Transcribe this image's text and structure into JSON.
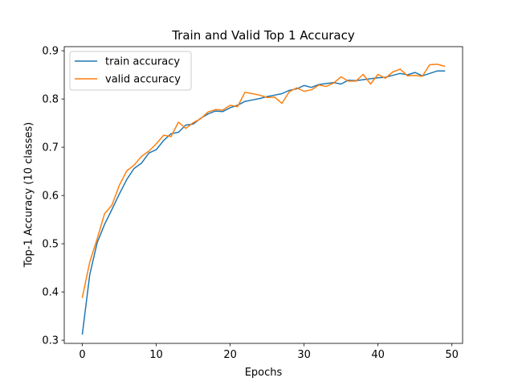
{
  "chart_data": {
    "type": "line",
    "title": "Train and Valid Top 1 Accuracy",
    "xlabel": "Epochs",
    "ylabel": "Top-1 Accuracy (10 classes)",
    "xlim": [
      -2.45,
      51.45
    ],
    "ylim": [
      0.2935,
      0.9085
    ],
    "xticks": [
      0,
      10,
      20,
      30,
      40,
      50
    ],
    "yticks": [
      0.3,
      0.4,
      0.5,
      0.6,
      0.7,
      0.8,
      0.9
    ],
    "grid": false,
    "legend_position": "upper-left",
    "x": [
      0,
      1,
      2,
      3,
      4,
      5,
      6,
      7,
      8,
      9,
      10,
      11,
      12,
      13,
      14,
      15,
      16,
      17,
      18,
      19,
      20,
      21,
      22,
      23,
      24,
      25,
      26,
      27,
      28,
      29,
      30,
      31,
      32,
      33,
      34,
      35,
      36,
      37,
      38,
      39,
      40,
      41,
      42,
      43,
      44,
      45,
      46,
      47,
      48,
      49
    ],
    "series": [
      {
        "name": "train accuracy",
        "color": "#1f77b4",
        "values": [
          0.313,
          0.436,
          0.502,
          0.54,
          0.571,
          0.603,
          0.633,
          0.656,
          0.667,
          0.688,
          0.695,
          0.714,
          0.728,
          0.731,
          0.746,
          0.748,
          0.76,
          0.769,
          0.775,
          0.774,
          0.782,
          0.787,
          0.795,
          0.798,
          0.801,
          0.805,
          0.808,
          0.811,
          0.818,
          0.821,
          0.828,
          0.824,
          0.83,
          0.832,
          0.834,
          0.831,
          0.839,
          0.838,
          0.84,
          0.842,
          0.844,
          0.845,
          0.849,
          0.853,
          0.85,
          0.855,
          0.848,
          0.853,
          0.858,
          0.858
        ]
      },
      {
        "name": "valid accuracy",
        "color": "#ff7f0e",
        "values": [
          0.389,
          0.462,
          0.51,
          0.562,
          0.58,
          0.621,
          0.651,
          0.663,
          0.681,
          0.692,
          0.707,
          0.725,
          0.722,
          0.752,
          0.739,
          0.751,
          0.759,
          0.773,
          0.778,
          0.777,
          0.787,
          0.784,
          0.814,
          0.811,
          0.808,
          0.803,
          0.804,
          0.791,
          0.815,
          0.823,
          0.816,
          0.819,
          0.829,
          0.826,
          0.833,
          0.846,
          0.837,
          0.837,
          0.851,
          0.831,
          0.851,
          0.843,
          0.856,
          0.862,
          0.848,
          0.849,
          0.847,
          0.871,
          0.872,
          0.868
        ]
      }
    ]
  }
}
